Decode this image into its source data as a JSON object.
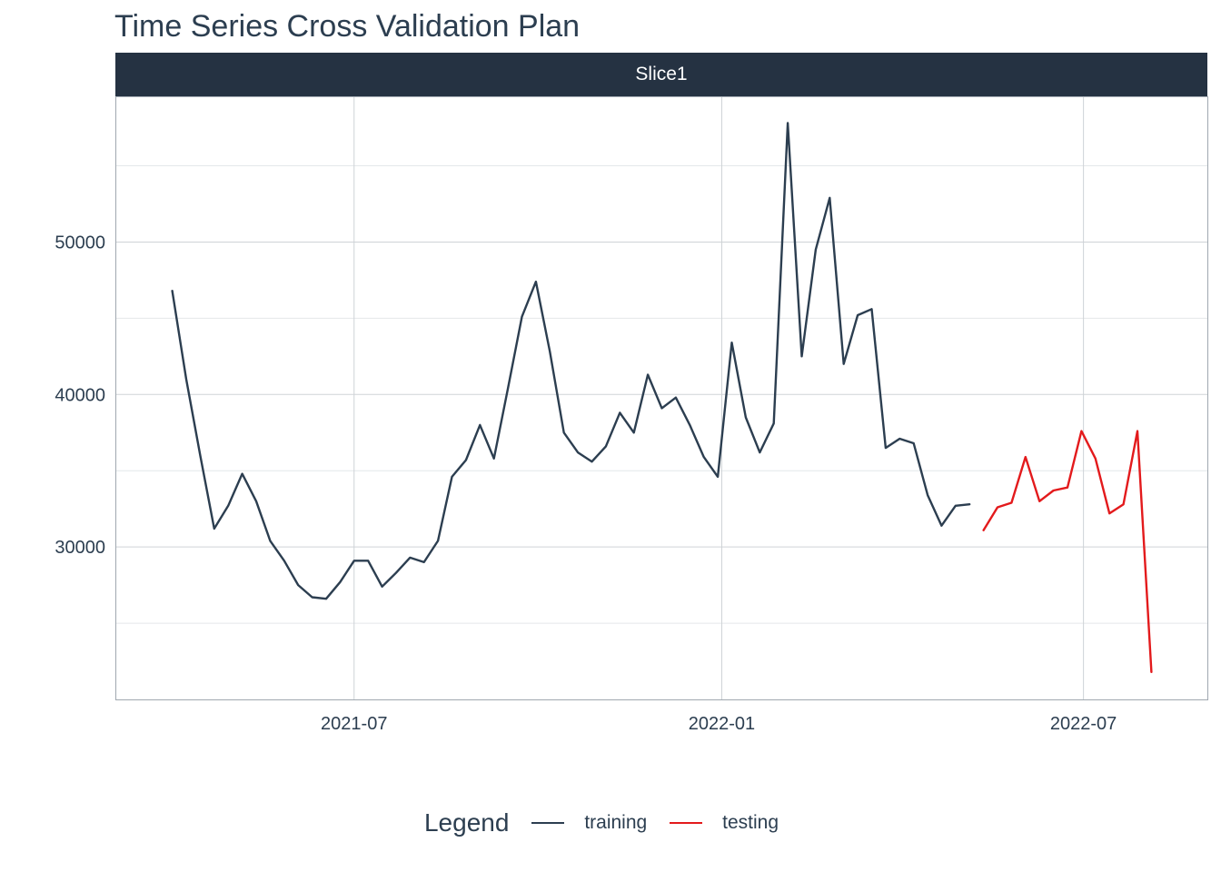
{
  "chart_data": {
    "type": "line",
    "title": "Time Series Cross Validation Plan",
    "facet": "Slice1",
    "xlabel": "",
    "ylabel": "",
    "x_ticks": [
      "2021-07",
      "2022-01",
      "2022-07"
    ],
    "y_ticks": [
      30000,
      40000,
      50000
    ],
    "xlim": [
      "2021-03-04",
      "2022-09-01"
    ],
    "ylim": [
      20000,
      59500
    ],
    "grid": true,
    "legend_title": "Legend",
    "legend_position": "bottom",
    "series": [
      {
        "name": "training",
        "color": "#2c3e50",
        "x": [
          "2021-04-01",
          "2021-04-08",
          "2021-04-15",
          "2021-04-22",
          "2021-04-29",
          "2021-05-06",
          "2021-05-13",
          "2021-05-20",
          "2021-05-27",
          "2021-06-03",
          "2021-06-10",
          "2021-06-17",
          "2021-06-24",
          "2021-07-01",
          "2021-07-08",
          "2021-07-15",
          "2021-07-22",
          "2021-07-29",
          "2021-08-05",
          "2021-08-12",
          "2021-08-19",
          "2021-08-26",
          "2021-09-02",
          "2021-09-09",
          "2021-09-16",
          "2021-09-23",
          "2021-09-30",
          "2021-10-07",
          "2021-10-14",
          "2021-10-21",
          "2021-10-28",
          "2021-11-04",
          "2021-11-11",
          "2021-11-18",
          "2021-11-25",
          "2021-12-02",
          "2021-12-09",
          "2021-12-16",
          "2021-12-23",
          "2021-12-30",
          "2022-01-06",
          "2022-01-13",
          "2022-01-20",
          "2022-01-27",
          "2022-02-03",
          "2022-02-10",
          "2022-02-17",
          "2022-02-24",
          "2022-03-03",
          "2022-03-10",
          "2022-03-17",
          "2022-03-24",
          "2022-03-31",
          "2022-04-07",
          "2022-04-14",
          "2022-04-21",
          "2022-04-28",
          "2022-05-05"
        ],
        "values": [
          46800,
          41000,
          36000,
          31200,
          32700,
          34800,
          33000,
          30400,
          29100,
          27500,
          26700,
          26600,
          27700,
          29100,
          29100,
          27400,
          28300,
          29300,
          29000,
          30400,
          34600,
          35700,
          38000,
          35800,
          40400,
          45100,
          47400,
          42800,
          37500,
          36200,
          35600,
          36600,
          38800,
          37500,
          41300,
          39100,
          39800,
          38000,
          35900,
          34600,
          43400,
          38500,
          36200,
          38100,
          57800,
          42500,
          49500,
          52900,
          42000,
          45200,
          45600,
          36500,
          37100,
          36800,
          33400,
          31400,
          32700,
          32800
        ]
      },
      {
        "name": "testing",
        "color": "#e31a1c",
        "x": [
          "2022-05-12",
          "2022-05-19",
          "2022-05-26",
          "2022-06-02",
          "2022-06-09",
          "2022-06-16",
          "2022-06-23",
          "2022-06-30",
          "2022-07-07",
          "2022-07-14",
          "2022-07-21",
          "2022-07-28",
          "2022-08-04"
        ],
        "values": [
          31100,
          32600,
          32900,
          35900,
          33000,
          33700,
          33900,
          37600,
          35800,
          32200,
          32800,
          37600,
          21800
        ]
      }
    ]
  }
}
